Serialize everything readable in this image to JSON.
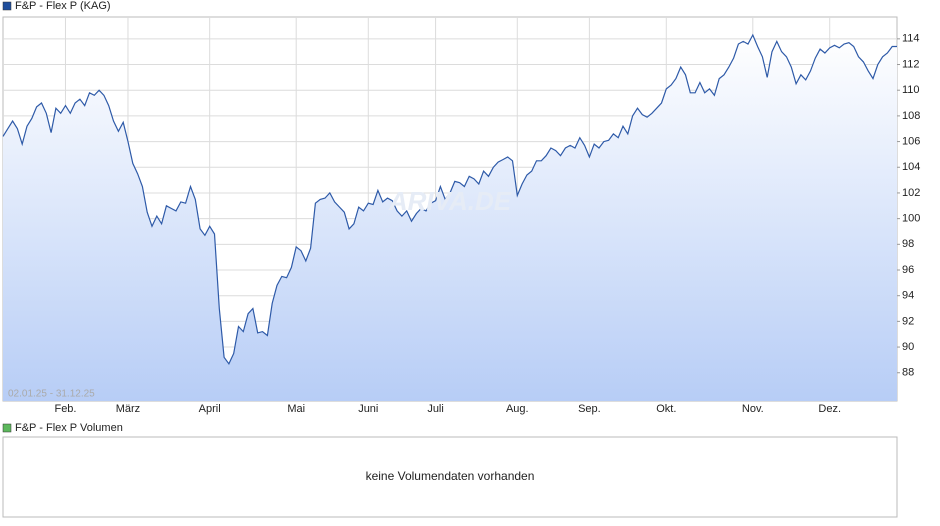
{
  "chart_data": {
    "type": "line",
    "date_range": "02.01.25 - 31.12.25",
    "watermark": "ARIVA.DE",
    "grid": true,
    "y_axis_side": "right",
    "ylim": [
      85.8,
      115.7
    ],
    "yticks": [
      88,
      90,
      92,
      94,
      96,
      98,
      100,
      102,
      104,
      106,
      108,
      110,
      112,
      114
    ],
    "categories": [
      null,
      null,
      null,
      null,
      null,
      null,
      null,
      null,
      null,
      null,
      null,
      null,
      null,
      "Feb.",
      null,
      null,
      null,
      null,
      null,
      null,
      null,
      null,
      null,
      null,
      null,
      null,
      "März",
      null,
      null,
      null,
      null,
      null,
      null,
      null,
      null,
      null,
      null,
      null,
      null,
      null,
      null,
      null,
      null,
      "April",
      null,
      null,
      null,
      null,
      null,
      null,
      null,
      null,
      null,
      null,
      null,
      null,
      null,
      null,
      null,
      null,
      null,
      "Mai",
      null,
      null,
      null,
      null,
      null,
      null,
      null,
      null,
      null,
      null,
      null,
      null,
      null,
      null,
      "Juni",
      null,
      null,
      null,
      null,
      null,
      null,
      null,
      null,
      null,
      null,
      null,
      null,
      null,
      "Juli",
      null,
      null,
      null,
      null,
      null,
      null,
      null,
      null,
      null,
      null,
      null,
      null,
      null,
      null,
      null,
      null,
      "Aug.",
      null,
      null,
      null,
      null,
      null,
      null,
      null,
      null,
      null,
      null,
      null,
      null,
      null,
      null,
      "Sep.",
      null,
      null,
      null,
      null,
      null,
      null,
      null,
      null,
      null,
      null,
      null,
      null,
      null,
      null,
      null,
      "Okt.",
      null,
      null,
      null,
      null,
      null,
      null,
      null,
      null,
      null,
      null,
      null,
      null,
      null,
      null,
      null,
      null,
      null,
      "Nov.",
      null,
      null,
      null,
      null,
      null,
      null,
      null,
      null,
      null,
      null,
      null,
      null,
      null,
      null,
      null,
      "Dez.",
      null,
      null,
      null,
      null,
      null,
      null,
      null,
      null,
      null,
      null,
      null,
      null,
      null,
      null
    ],
    "series": [
      {
        "name": "F&P - Flex P (KAG)",
        "color": "#2e5aa8",
        "legend_color": "#1f4e9c",
        "values": [
          106.4,
          107.0,
          107.6,
          107.0,
          105.8,
          107.2,
          107.8,
          108.7,
          109.0,
          108.2,
          106.7,
          108.6,
          108.2,
          108.8,
          108.2,
          109.0,
          109.3,
          108.8,
          109.8,
          109.6,
          110.0,
          109.6,
          108.8,
          107.6,
          106.8,
          107.5,
          106.0,
          104.3,
          103.5,
          102.5,
          100.5,
          99.4,
          100.2,
          99.6,
          101.0,
          100.8,
          100.6,
          101.3,
          101.2,
          102.5,
          101.5,
          99.2,
          98.7,
          99.4,
          98.8,
          93.0,
          89.2,
          88.7,
          89.5,
          91.6,
          91.2,
          92.6,
          93.0,
          91.1,
          91.2,
          90.9,
          93.4,
          94.8,
          95.5,
          95.4,
          96.2,
          97.8,
          97.5,
          96.7,
          97.7,
          101.2,
          101.5,
          101.6,
          102.0,
          101.3,
          100.9,
          100.5,
          99.2,
          99.6,
          100.9,
          100.6,
          101.2,
          101.1,
          102.2,
          101.3,
          101.6,
          101.4,
          100.6,
          100.2,
          100.6,
          99.8,
          100.4,
          100.8,
          100.6,
          101.2,
          101.4,
          102.5,
          101.5,
          102.0,
          102.9,
          102.8,
          102.5,
          103.3,
          103.1,
          102.7,
          103.7,
          103.3,
          104.0,
          104.4,
          104.6,
          104.8,
          104.5,
          101.8,
          102.7,
          103.4,
          103.7,
          104.5,
          104.5,
          104.9,
          105.5,
          105.3,
          104.9,
          105.5,
          105.7,
          105.5,
          106.3,
          105.7,
          104.8,
          105.8,
          105.5,
          106.0,
          106.1,
          106.6,
          106.3,
          107.2,
          106.6,
          108.0,
          108.6,
          108.1,
          107.9,
          108.2,
          108.6,
          109.0,
          110.1,
          110.4,
          110.9,
          111.8,
          111.2,
          109.8,
          109.8,
          110.6,
          109.8,
          110.1,
          109.6,
          110.9,
          111.2,
          111.8,
          112.5,
          113.6,
          113.8,
          113.6,
          114.3,
          113.4,
          112.6,
          111.0,
          113.0,
          113.8,
          113.0,
          112.6,
          111.8,
          110.5,
          111.2,
          110.8,
          111.5,
          112.5,
          113.2,
          112.9,
          113.3,
          113.5,
          113.3,
          113.6,
          113.7,
          113.4,
          112.6,
          112.2,
          111.5,
          110.9,
          112.0,
          112.6,
          112.9,
          113.4,
          113.4
        ]
      }
    ],
    "volume_panel": {
      "title": "F&P - Flex P Volumen",
      "color": "#5cb85c",
      "message": "keine Volumendaten vorhanden"
    }
  }
}
